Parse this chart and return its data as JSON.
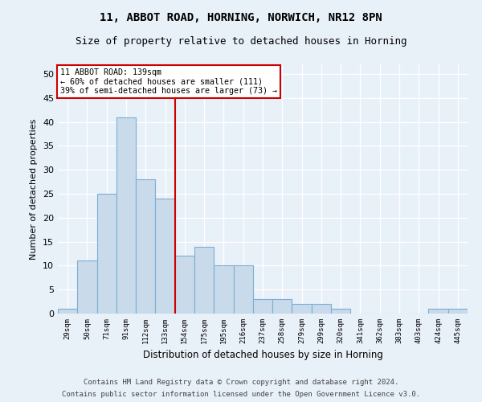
{
  "title": "11, ABBOT ROAD, HORNING, NORWICH, NR12 8PN",
  "subtitle": "Size of property relative to detached houses in Horning",
  "xlabel": "Distribution of detached houses by size in Horning",
  "ylabel": "Number of detached properties",
  "categories": [
    "29sqm",
    "50sqm",
    "71sqm",
    "91sqm",
    "112sqm",
    "133sqm",
    "154sqm",
    "175sqm",
    "195sqm",
    "216sqm",
    "237sqm",
    "258sqm",
    "279sqm",
    "299sqm",
    "320sqm",
    "341sqm",
    "362sqm",
    "383sqm",
    "403sqm",
    "424sqm",
    "445sqm"
  ],
  "values": [
    1,
    11,
    25,
    41,
    28,
    24,
    12,
    14,
    10,
    10,
    3,
    3,
    2,
    2,
    1,
    0,
    0,
    0,
    0,
    1,
    1
  ],
  "bar_color": "#c9daea",
  "bar_edge_color": "#7bafd4",
  "red_line_x": 5.5,
  "annotation_line1": "11 ABBOT ROAD: 139sqm",
  "annotation_line2": "← 60% of detached houses are smaller (111)",
  "annotation_line3": "39% of semi-detached houses are larger (73) →",
  "annotation_box_color": "#ffffff",
  "annotation_box_edge": "#cc0000",
  "vline_color": "#cc0000",
  "ylim": [
    0,
    52
  ],
  "yticks": [
    0,
    5,
    10,
    15,
    20,
    25,
    30,
    35,
    40,
    45,
    50
  ],
  "footnote1": "Contains HM Land Registry data © Crown copyright and database right 2024.",
  "footnote2": "Contains public sector information licensed under the Open Government Licence v3.0.",
  "background_color": "#e8f0f8",
  "plot_background": "#e8f0f8",
  "grid_color": "#ffffff",
  "title_fontsize": 10,
  "subtitle_fontsize": 9,
  "footnote_fontsize": 6.5
}
